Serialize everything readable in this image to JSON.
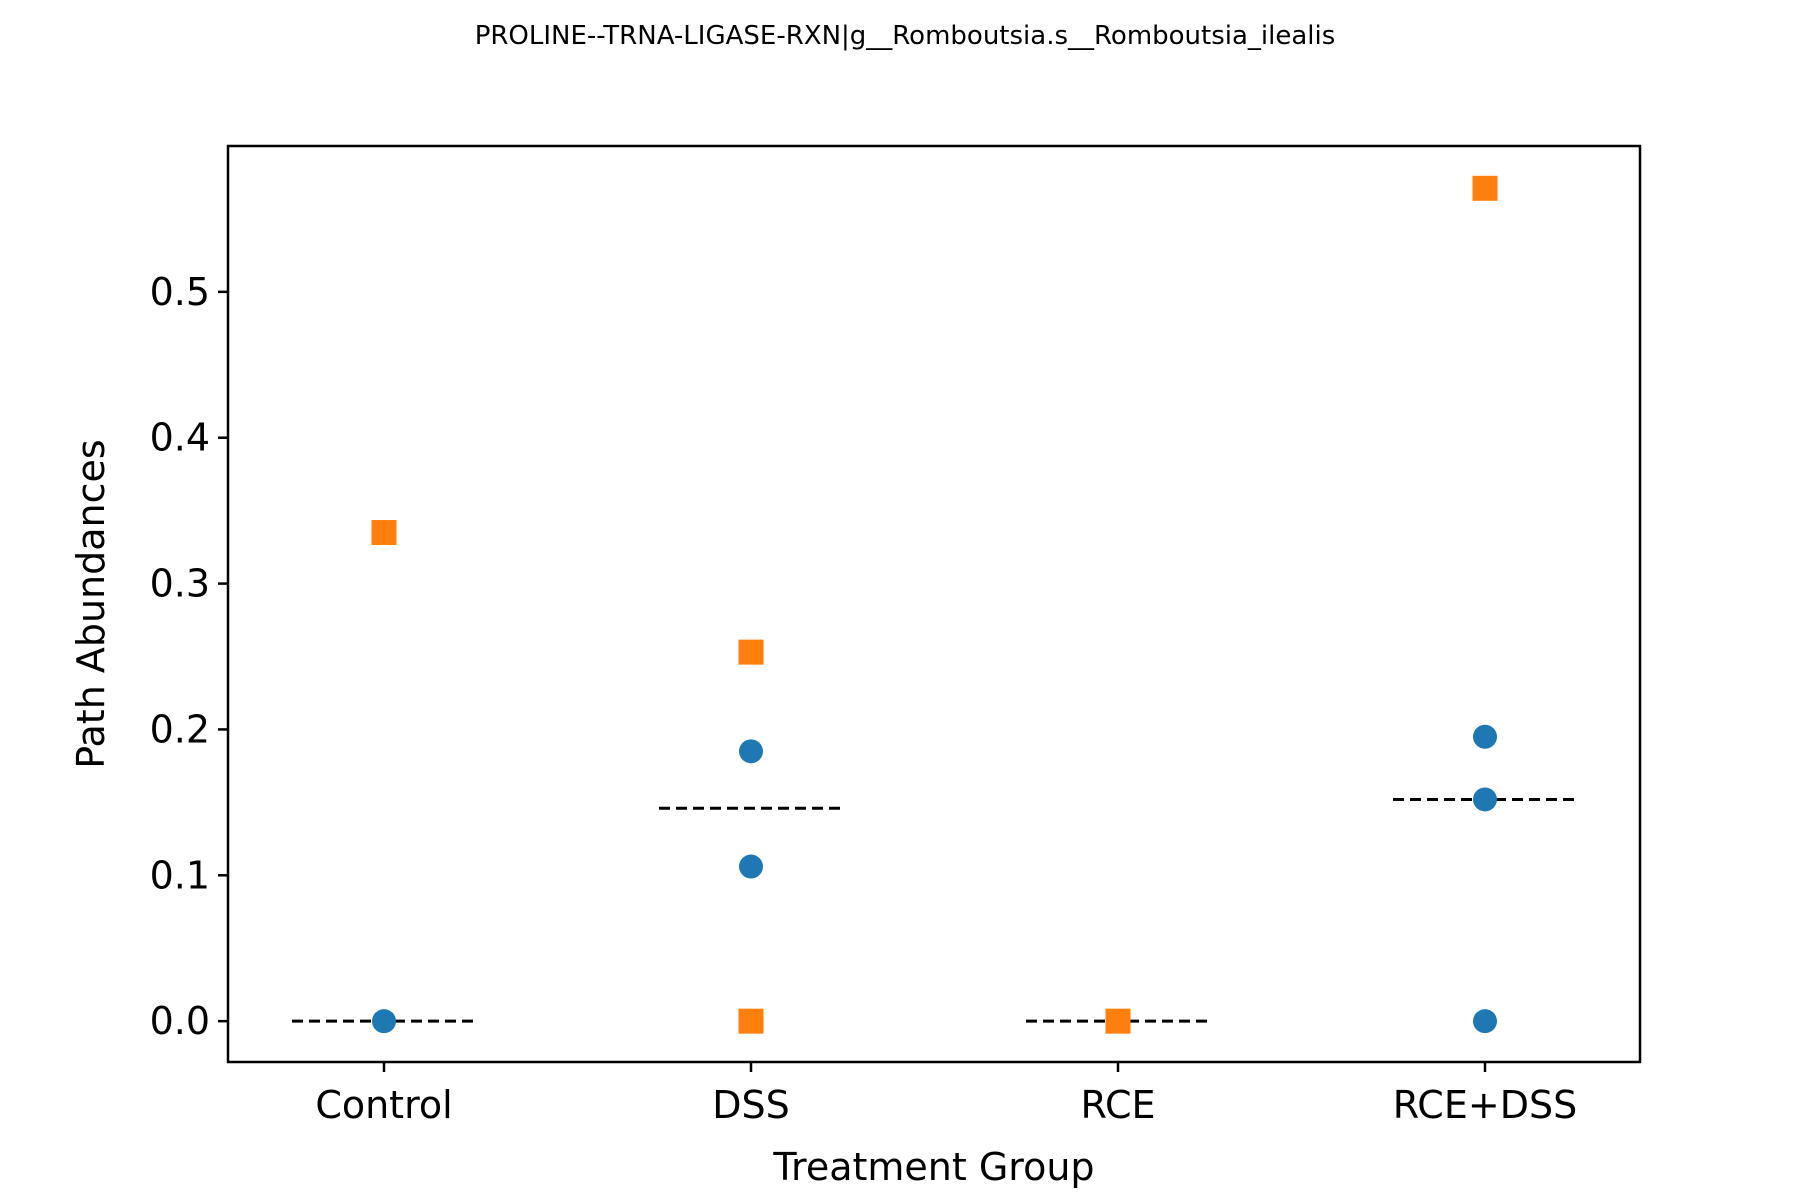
{
  "chart_data": {
    "type": "scatter",
    "title": "PROLINE--TRNA-LIGASE-RXN|g__Romboutsia.s__Romboutsia_ilealis",
    "xlabel": "Treatment Group",
    "ylabel": "Path Abundances",
    "categories": [
      "Control",
      "DSS",
      "RCE",
      "RCE+DSS"
    ],
    "ylim": [
      -0.028,
      0.6
    ],
    "yticks": [
      0.0,
      0.1,
      0.2,
      0.3,
      0.4,
      0.5
    ],
    "ytick_labels": [
      "0.0",
      "0.1",
      "0.2",
      "0.3",
      "0.4",
      "0.5"
    ],
    "grid": false,
    "series": [
      {
        "marker": "circle",
        "color": "#1f77b4",
        "points": [
          {
            "category": "Control",
            "y": 0.0
          },
          {
            "category": "DSS",
            "y": 0.185
          },
          {
            "category": "DSS",
            "y": 0.106
          },
          {
            "category": "RCE+DSS",
            "y": 0.195
          },
          {
            "category": "RCE+DSS",
            "y": 0.152
          },
          {
            "category": "RCE+DSS",
            "y": 0.0
          }
        ]
      },
      {
        "marker": "square",
        "color": "#ff7f0e",
        "points": [
          {
            "category": "Control",
            "y": 0.335
          },
          {
            "category": "DSS",
            "y": 0.253
          },
          {
            "category": "DSS",
            "y": 0.0
          },
          {
            "category": "RCE",
            "y": 0.0
          },
          {
            "category": "RCE+DSS",
            "y": 0.571
          }
        ]
      }
    ],
    "median_lines": [
      {
        "category": "Control",
        "y": 0.0
      },
      {
        "category": "DSS",
        "y": 0.146
      },
      {
        "category": "RCE",
        "y": 0.0
      },
      {
        "category": "RCE+DSS",
        "y": 0.152
      }
    ],
    "median_line_style": "dashed",
    "median_line_color": "#000000"
  }
}
